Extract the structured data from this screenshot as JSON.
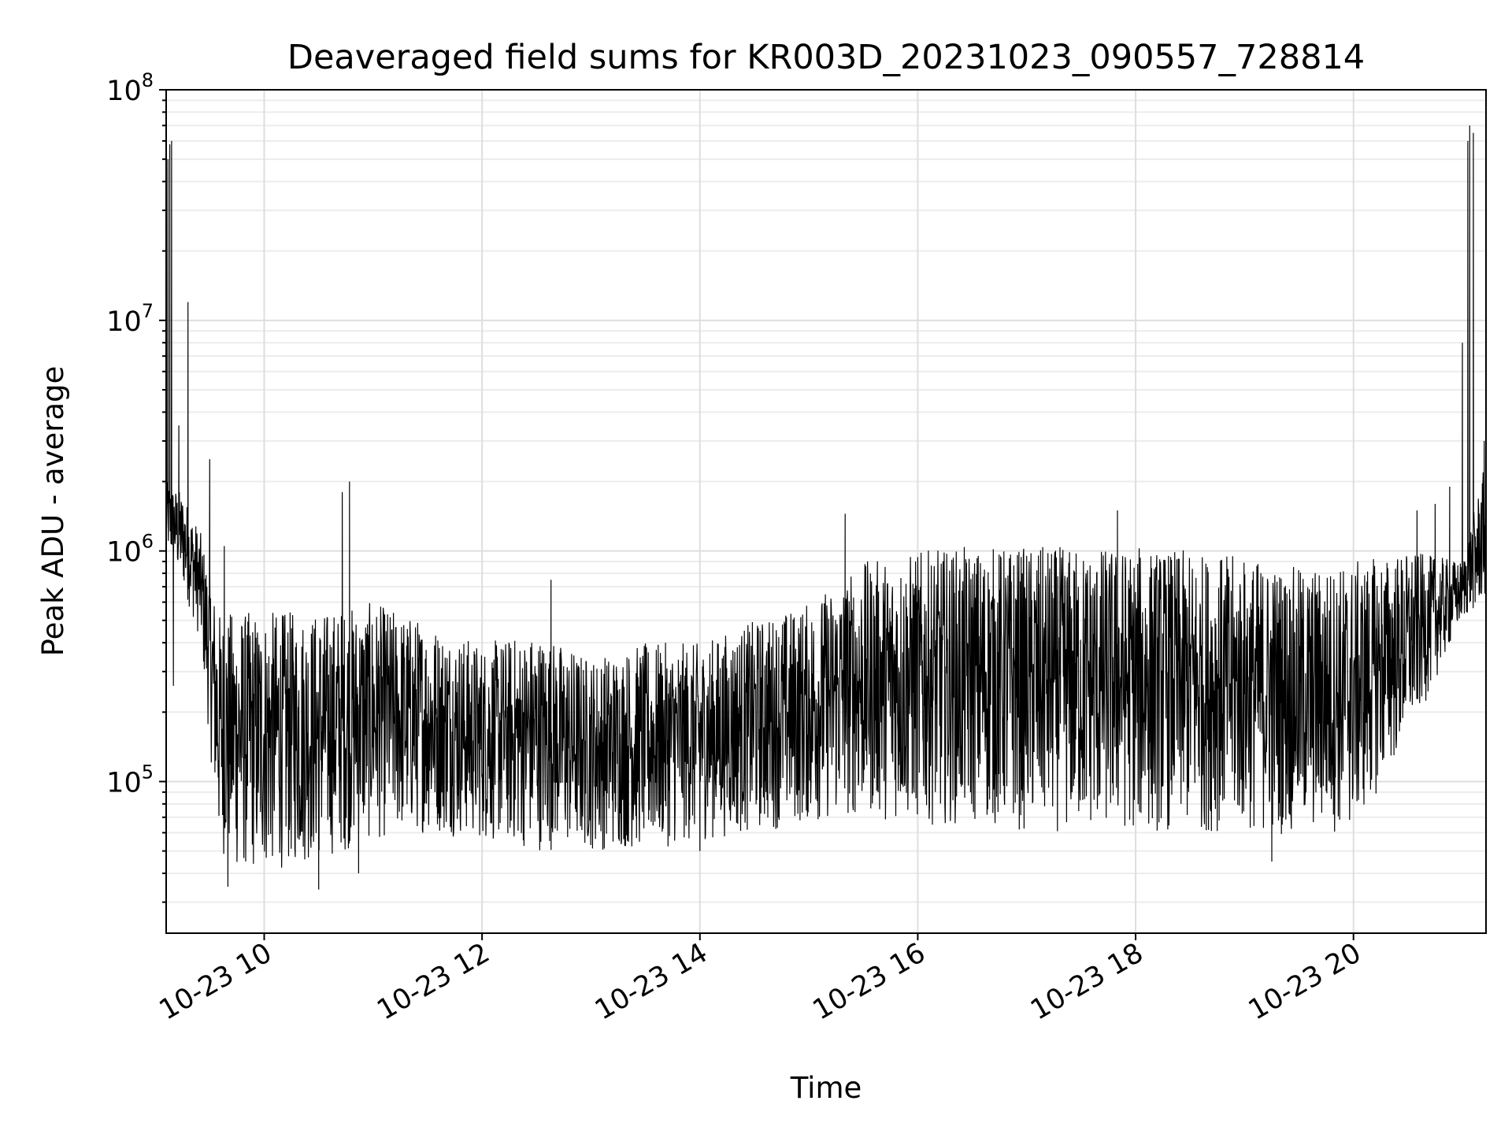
{
  "chart_data": {
    "type": "line",
    "title": "Deaveraged field sums for KR003D_20231023_090557_728814",
    "xlabel": "Time",
    "ylabel": "Peak ADU - average",
    "yscale": "log",
    "ylim": [
      22000,
      100000000
    ],
    "xlim": [
      "2023-10-23 09:06",
      "2023-10-23 21:13"
    ],
    "grid": true,
    "line_color": "#000000",
    "y_ticks": [
      {
        "value": 100000,
        "base": "10",
        "exp": "5"
      },
      {
        "value": 1000000,
        "base": "10",
        "exp": "6"
      },
      {
        "value": 10000000,
        "base": "10",
        "exp": "7"
      },
      {
        "value": 100000000,
        "base": "10",
        "exp": "8"
      }
    ],
    "x_ticks": [
      {
        "value": "2023-10-23 10:00",
        "label": "10-23 10"
      },
      {
        "value": "2023-10-23 12:00",
        "label": "10-23 12"
      },
      {
        "value": "2023-10-23 14:00",
        "label": "10-23 14"
      },
      {
        "value": "2023-10-23 16:00",
        "label": "10-23 16"
      },
      {
        "value": "2023-10-23 18:00",
        "label": "10-23 18"
      },
      {
        "value": "2023-10-23 20:00",
        "label": "10-23 20"
      }
    ],
    "series": [
      {
        "envelope": {
          "x": [
            "2023-10-23 09:06",
            "2023-10-23 09:15",
            "2023-10-23 09:25",
            "2023-10-23 09:35",
            "2023-10-23 09:45",
            "2023-10-23 10:00",
            "2023-10-23 10:30",
            "2023-10-23 11:00",
            "2023-10-23 11:30",
            "2023-10-23 12:00",
            "2023-10-23 12:30",
            "2023-10-23 13:00",
            "2023-10-23 13:30",
            "2023-10-23 14:00",
            "2023-10-23 14:30",
            "2023-10-23 15:00",
            "2023-10-23 15:30",
            "2023-10-23 16:00",
            "2023-10-23 16:30",
            "2023-10-23 17:00",
            "2023-10-23 17:30",
            "2023-10-23 18:00",
            "2023-10-23 18:30",
            "2023-10-23 19:00",
            "2023-10-23 19:30",
            "2023-10-23 20:00",
            "2023-10-23 20:30",
            "2023-10-23 21:00",
            "2023-10-23 21:13"
          ],
          "upper": [
            2000000,
            1800000,
            1200000,
            550000,
            550000,
            550000,
            550000,
            600000,
            500000,
            400000,
            450000,
            350000,
            400000,
            400000,
            500000,
            600000,
            900000,
            1000000,
            1050000,
            1050000,
            1050000,
            1050000,
            1000000,
            950000,
            850000,
            900000,
            1000000,
            900000,
            2500000
          ],
          "lower": [
            1000000,
            700000,
            400000,
            50000,
            40000,
            40000,
            45000,
            55000,
            60000,
            55000,
            50000,
            50000,
            50000,
            55000,
            60000,
            65000,
            70000,
            65000,
            65000,
            60000,
            60000,
            60000,
            60000,
            60000,
            58000,
            60000,
            150000,
            500000,
            600000
          ]
        },
        "spikes": [
          {
            "x": "2023-10-23 09:06",
            "y": 2800000
          },
          {
            "x": "2023-10-23 09:07",
            "y": 50000000
          },
          {
            "x": "2023-10-23 09:08",
            "y": 58000000
          },
          {
            "x": "2023-10-23 09:09",
            "y": 60000000
          },
          {
            "x": "2023-10-23 09:10",
            "y": 260000
          },
          {
            "x": "2023-10-23 09:13",
            "y": 3500000
          },
          {
            "x": "2023-10-23 09:18",
            "y": 12000000
          },
          {
            "x": "2023-10-23 09:30",
            "y": 2500000
          },
          {
            "x": "2023-10-23 09:38",
            "y": 1050000
          },
          {
            "x": "2023-10-23 09:40",
            "y": 35000
          },
          {
            "x": "2023-10-23 10:30",
            "y": 34000
          },
          {
            "x": "2023-10-23 10:43",
            "y": 1800000
          },
          {
            "x": "2023-10-23 10:47",
            "y": 2000000
          },
          {
            "x": "2023-10-23 10:52",
            "y": 40000
          },
          {
            "x": "2023-10-23 12:38",
            "y": 750000
          },
          {
            "x": "2023-10-23 14:00",
            "y": 50000
          },
          {
            "x": "2023-10-23 15:20",
            "y": 1450000
          },
          {
            "x": "2023-10-23 17:50",
            "y": 1500000
          },
          {
            "x": "2023-10-23 19:15",
            "y": 45000
          },
          {
            "x": "2023-10-23 20:35",
            "y": 1500000
          },
          {
            "x": "2023-10-23 20:45",
            "y": 1600000
          },
          {
            "x": "2023-10-23 20:53",
            "y": 1900000
          },
          {
            "x": "2023-10-23 21:00",
            "y": 8000000
          },
          {
            "x": "2023-10-23 21:03",
            "y": 60000000
          },
          {
            "x": "2023-10-23 21:04",
            "y": 70000000
          },
          {
            "x": "2023-10-23 21:06",
            "y": 65000000
          },
          {
            "x": "2023-10-23 21:07",
            "y": 600000
          },
          {
            "x": "2023-10-23 21:12",
            "y": 3000000
          },
          {
            "x": "2023-10-23 21:13",
            "y": 2500000
          }
        ]
      }
    ]
  }
}
